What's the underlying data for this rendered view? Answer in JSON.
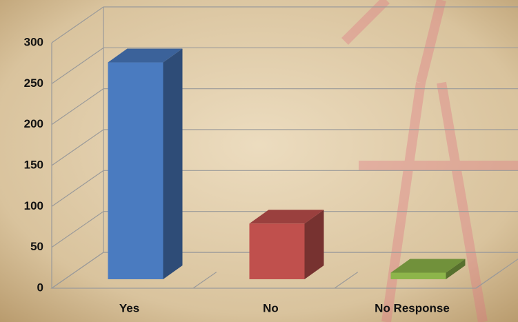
{
  "chart_data": {
    "type": "bar3d",
    "categories": [
      "Yes",
      "No",
      "No Response"
    ],
    "series": [
      {
        "values": [
          265,
          68,
          8
        ],
        "colors": [
          "#4a7bc0",
          "#c0504d",
          "#8db54a"
        ]
      }
    ],
    "ylim": [
      0,
      300
    ],
    "yticks": [
      0,
      50,
      100,
      150,
      200,
      250,
      300
    ],
    "grid": true
  }
}
